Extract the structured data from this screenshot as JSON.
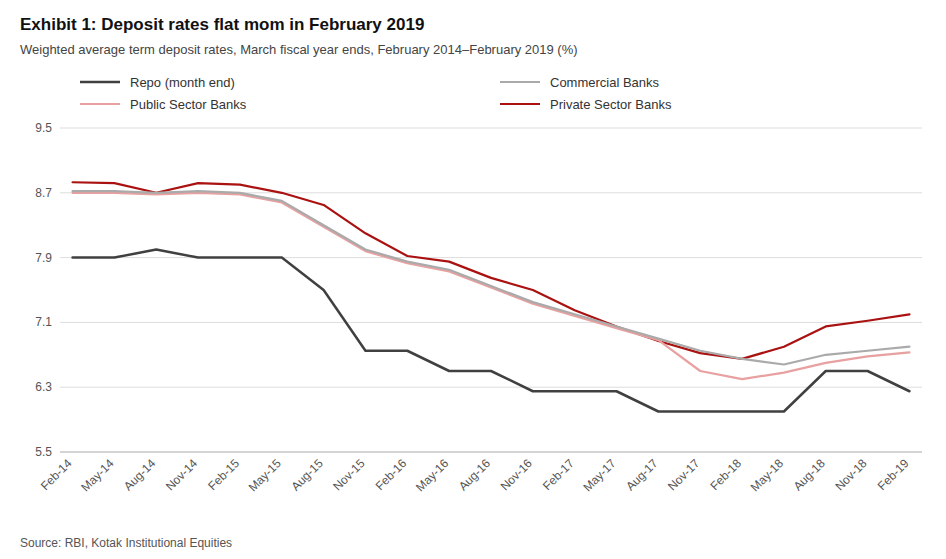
{
  "chart_data": {
    "type": "line",
    "title": "Exhibit 1: Deposit rates flat mom in February 2019",
    "subtitle": "Weighted average term deposit rates, March fiscal year ends, February 2014–February 2019 (%)",
    "source": "Source: RBI, Kotak Institutional Equities",
    "categories": [
      "Feb-14",
      "May-14",
      "Aug-14",
      "Nov-14",
      "Feb-15",
      "May-15",
      "Aug-15",
      "Nov-15",
      "Feb-16",
      "May-16",
      "Aug-16",
      "Nov-16",
      "Feb-17",
      "May-17",
      "Aug-17",
      "Nov-17",
      "Feb-18",
      "May-18",
      "Aug-18",
      "Nov-18",
      "Feb-19"
    ],
    "series": [
      {
        "name": "Repo (month end)",
        "color": "#404040",
        "values": [
          7.9,
          7.9,
          8.0,
          7.9,
          7.9,
          7.9,
          7.5,
          6.75,
          6.75,
          6.5,
          6.5,
          6.25,
          6.25,
          6.25,
          6.0,
          6.0,
          6.0,
          6.0,
          6.5,
          6.5,
          6.25
        ]
      },
      {
        "name": "Commercial Banks",
        "color": "#aaaaaa",
        "values": [
          8.72,
          8.72,
          8.7,
          8.72,
          8.7,
          8.6,
          8.3,
          8.0,
          7.85,
          7.75,
          7.55,
          7.35,
          7.2,
          7.05,
          6.9,
          6.75,
          6.65,
          6.58,
          6.7,
          6.75,
          6.8
        ]
      },
      {
        "name": "Public Sector Banks",
        "color": "#e8a0a0",
        "values": [
          8.7,
          8.7,
          8.68,
          8.7,
          8.68,
          8.58,
          8.28,
          7.98,
          7.83,
          7.73,
          7.53,
          7.33,
          7.18,
          7.03,
          6.88,
          6.5,
          6.4,
          6.48,
          6.6,
          6.68,
          6.73
        ]
      },
      {
        "name": "Private Sector Banks",
        "color": "#aa1111",
        "values": [
          8.83,
          8.82,
          8.7,
          8.82,
          8.8,
          8.7,
          8.55,
          8.2,
          7.92,
          7.85,
          7.65,
          7.5,
          7.25,
          7.05,
          6.87,
          6.72,
          6.65,
          6.8,
          7.05,
          7.12,
          7.2
        ]
      }
    ],
    "ylim": [
      5.5,
      9.5
    ],
    "yticks": [
      5.5,
      6.3,
      7.1,
      7.9,
      8.7,
      9.5
    ],
    "grid": true,
    "legend": "top"
  }
}
